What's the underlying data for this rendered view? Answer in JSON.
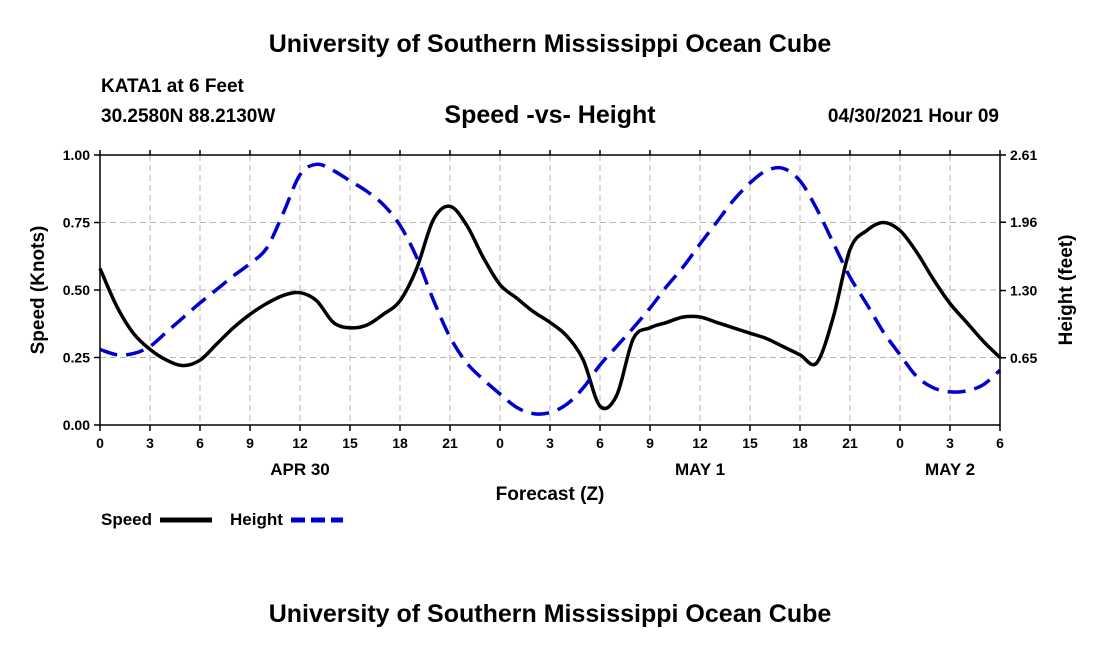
{
  "header": {
    "title": "University of Southern Mississippi Ocean Cube",
    "station": "KATA1 at 6 Feet",
    "coordinates": "30.2580N  88.2130W",
    "subtitle": "Speed -vs- Height",
    "datetime": "04/30/2021 Hour 09"
  },
  "footer": {
    "title": "University of Southern Mississippi Ocean Cube"
  },
  "chart_data": {
    "type": "line",
    "title": "Speed -vs- Height",
    "xlabel": "Forecast (Z)",
    "ylabel_left": "Speed (Knots)",
    "ylabel_right": "Height (feet)",
    "x_unit": "hours from 00Z Apr 30",
    "xlim": [
      0,
      54
    ],
    "ylim_left": [
      0,
      1.0
    ],
    "ylim_right": [
      0,
      2.61
    ],
    "x_ticks": [
      0,
      3,
      6,
      9,
      12,
      15,
      18,
      21,
      24,
      27,
      30,
      33,
      36,
      39,
      42,
      45,
      48,
      51,
      54
    ],
    "x_tick_labels": [
      "0",
      "3",
      "6",
      "9",
      "12",
      "15",
      "18",
      "21",
      "0",
      "3",
      "6",
      "9",
      "12",
      "15",
      "18",
      "21",
      "0",
      "3",
      "6"
    ],
    "date_labels": [
      {
        "label": "APR 30",
        "x": 12
      },
      {
        "label": "MAY 1",
        "x": 36
      },
      {
        "label": "MAY 2",
        "x": 51
      }
    ],
    "y_ticks_left": [
      0.0,
      0.25,
      0.5,
      0.75,
      1.0
    ],
    "y_tick_labels_left": [
      "0.00",
      "0.25",
      "0.50",
      "0.75",
      "1.00"
    ],
    "y_ticks_right": [
      0.65,
      1.3,
      1.96,
      2.61
    ],
    "y_tick_labels_right": [
      "0.65",
      "1.30",
      "1.96",
      "2.61"
    ],
    "grid": true,
    "legend_position": "bottom-left",
    "series": [
      {
        "name": "Speed",
        "axis": "left",
        "color": "#000000",
        "style": "solid",
        "x": [
          0,
          1,
          2,
          3,
          4,
          5,
          6,
          7,
          8,
          9,
          10,
          11,
          12,
          13,
          14,
          15,
          16,
          17,
          18,
          19,
          20,
          21,
          22,
          23,
          24,
          25,
          26,
          27,
          28,
          29,
          30,
          31,
          32,
          33,
          34,
          35,
          36,
          37,
          38,
          39,
          40,
          41,
          42,
          43,
          44,
          45,
          46,
          47,
          48,
          49,
          50,
          51,
          52,
          53,
          54
        ],
        "values": [
          0.58,
          0.44,
          0.34,
          0.28,
          0.24,
          0.22,
          0.24,
          0.3,
          0.36,
          0.41,
          0.45,
          0.48,
          0.49,
          0.46,
          0.38,
          0.36,
          0.37,
          0.41,
          0.46,
          0.58,
          0.76,
          0.81,
          0.74,
          0.62,
          0.52,
          0.47,
          0.42,
          0.38,
          0.33,
          0.24,
          0.07,
          0.11,
          0.32,
          0.36,
          0.38,
          0.4,
          0.4,
          0.38,
          0.36,
          0.34,
          0.32,
          0.29,
          0.26,
          0.23,
          0.4,
          0.65,
          0.72,
          0.75,
          0.72,
          0.64,
          0.54,
          0.45,
          0.38,
          0.31,
          0.25
        ]
      },
      {
        "name": "Height",
        "axis": "right",
        "color": "#0000CC",
        "style": "dashed",
        "x": [
          0,
          1,
          2,
          3,
          4,
          5,
          6,
          7,
          8,
          9,
          10,
          11,
          12,
          13,
          14,
          15,
          16,
          17,
          18,
          19,
          20,
          21,
          22,
          23,
          24,
          25,
          26,
          27,
          28,
          29,
          30,
          31,
          32,
          33,
          34,
          35,
          36,
          37,
          38,
          39,
          40,
          41,
          42,
          43,
          44,
          45,
          46,
          47,
          48,
          49,
          50,
          51,
          52,
          53,
          54
        ],
        "values": [
          0.73,
          0.68,
          0.69,
          0.76,
          0.9,
          1.04,
          1.18,
          1.31,
          1.44,
          1.56,
          1.71,
          2.05,
          2.42,
          2.52,
          2.46,
          2.36,
          2.26,
          2.13,
          1.93,
          1.62,
          1.21,
          0.85,
          0.6,
          0.44,
          0.3,
          0.17,
          0.11,
          0.12,
          0.2,
          0.36,
          0.58,
          0.76,
          0.94,
          1.13,
          1.34,
          1.53,
          1.75,
          1.96,
          2.17,
          2.34,
          2.46,
          2.48,
          2.36,
          2.09,
          1.76,
          1.43,
          1.17,
          0.9,
          0.68,
          0.47,
          0.36,
          0.32,
          0.33,
          0.39,
          0.53
        ]
      }
    ]
  }
}
